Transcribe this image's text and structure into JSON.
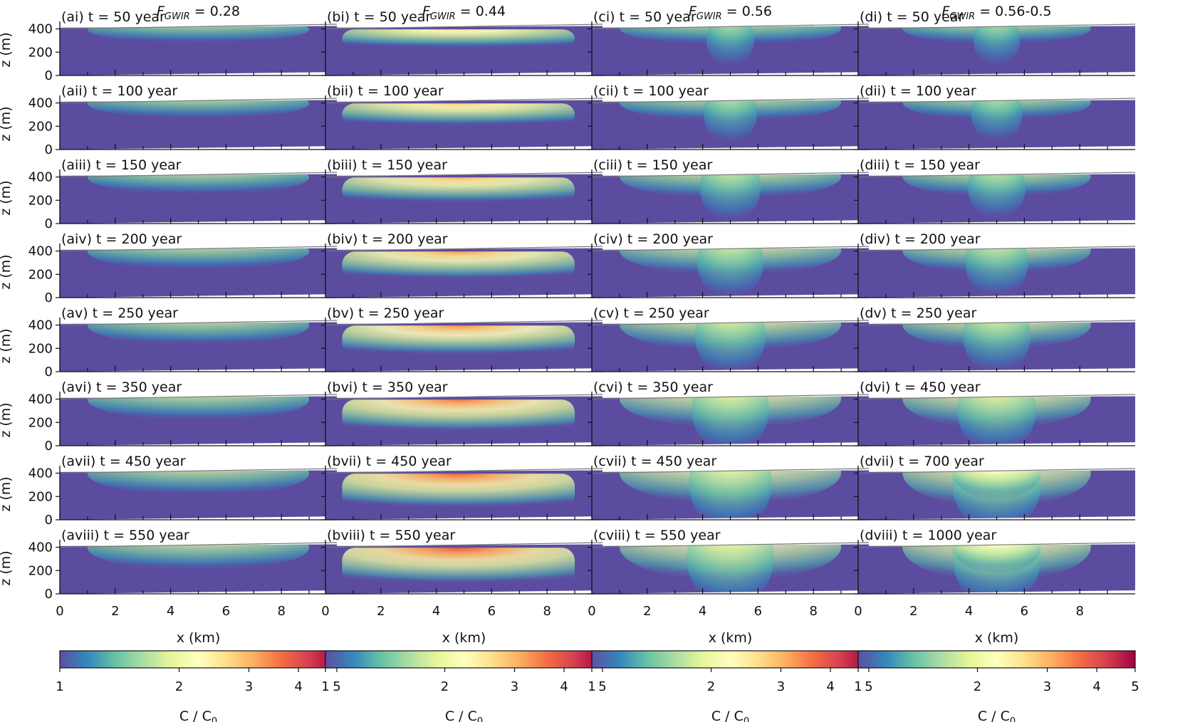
{
  "chart_data": {
    "type": "heatmap",
    "description_kind": "grid of cross-section concentration maps",
    "columns": [
      {
        "id": "a",
        "title_symbol": "F",
        "title_subscript": "GWIR",
        "title_value": " = 0.28"
      },
      {
        "id": "b",
        "title_symbol": "F",
        "title_subscript": "GWIR",
        "title_value": " = 0.44"
      },
      {
        "id": "c",
        "title_symbol": "F",
        "title_subscript": "GWIR",
        "title_value": " = 0.56"
      },
      {
        "id": "d",
        "title_symbol": "F",
        "title_subscript": "GWIR",
        "title_value": " = 0.56-0.5"
      }
    ],
    "panels": [
      [
        "(ai) t = 50 year",
        "(bi) t = 50 year",
        "(ci) t = 50 year",
        "(di) t = 50 year"
      ],
      [
        "(aii) t = 100 year",
        "(bii) t = 100 year",
        "(cii) t = 100 year",
        "(dii) t = 100 year"
      ],
      [
        "(aiii) t = 150 year",
        "(biii) t = 150 year",
        "(ciii) t = 150 year",
        "(diii) t = 150 year"
      ],
      [
        "(aiv) t = 200 year",
        "(biv) t = 200 year",
        "(civ) t = 200 year",
        "(div) t = 200 year"
      ],
      [
        "(av) t = 250 year",
        "(bv) t = 250 year",
        "(cv) t = 250 year",
        "(dv) t = 250 year"
      ],
      [
        "(avi) t = 350 year",
        "(bvi) t = 350 year",
        "(cvi) t = 350 year",
        "(dvi) t = 450 year"
      ],
      [
        "(avii) t = 450 year",
        "(bvii) t = 450 year",
        "(cvii) t = 450 year",
        "(dvii) t = 700 year"
      ],
      [
        "(aviii) t = 550 year",
        "(bviii) t = 550 year",
        "(cviii) t = 550 year",
        "(dviii) t = 1000 year"
      ]
    ],
    "panel_intensity": [
      [
        0.26,
        0.3,
        0.26,
        0.24
      ],
      [
        0.34,
        0.42,
        0.36,
        0.32
      ],
      [
        0.42,
        0.52,
        0.5,
        0.44
      ],
      [
        0.48,
        0.6,
        0.6,
        0.54
      ],
      [
        0.54,
        0.66,
        0.68,
        0.62
      ],
      [
        0.6,
        0.74,
        0.8,
        0.82
      ],
      [
        0.64,
        0.82,
        0.9,
        1.0
      ],
      [
        0.68,
        0.88,
        0.98,
        1.0
      ]
    ],
    "xlabel": "x (km)",
    "ylabel": "z (m)",
    "x_ticks": [
      "0",
      "2",
      "4",
      "6",
      "8"
    ],
    "y_ticks": [
      "0",
      "200",
      "400"
    ],
    "xlim": [
      0,
      10
    ],
    "ylim": [
      0,
      440
    ],
    "colorbar": {
      "label_main": "C / C",
      "label_sub": "0",
      "ticks": [
        "1",
        "2",
        "3",
        "4",
        "5"
      ],
      "range": [
        1,
        5
      ],
      "scale": "log",
      "colormap": "Spectral_r",
      "colors": [
        "#5e4fa2",
        "#3288bd",
        "#66c2a5",
        "#abdda4",
        "#e6f598",
        "#ffffbf",
        "#fee08b",
        "#fdae61",
        "#f46d43",
        "#d53e4f",
        "#9e0142"
      ]
    },
    "background_color": "#5b4c9f"
  }
}
